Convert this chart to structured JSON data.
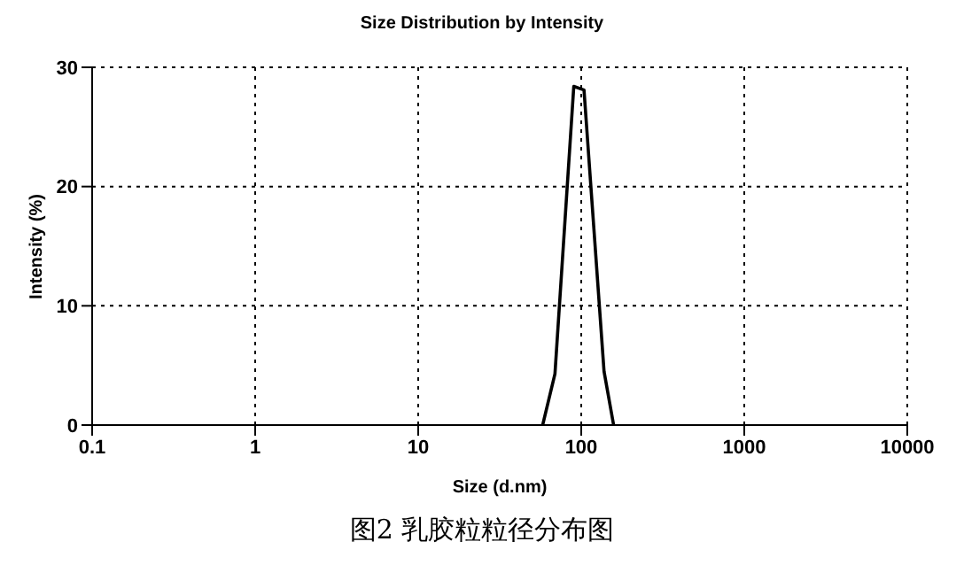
{
  "chart_data": {
    "type": "line",
    "title": "Size Distribution by Intensity",
    "xlabel": "Size (d.nm)",
    "ylabel": "Intensity (%)",
    "annotations": [
      "图2  乳胶粒粒径分布图"
    ],
    "x": [
      58,
      69,
      90,
      104,
      138,
      158
    ],
    "series": [
      {
        "color": "#000000",
        "values": [
          0,
          4.3,
          28.4,
          28.1,
          4.5,
          0
        ]
      }
    ],
    "log": "x",
    "xlim": [
      0.1,
      10000
    ],
    "xticks": [
      0.1,
      1,
      10,
      100,
      1000,
      10000
    ],
    "ylim": [
      0,
      30
    ],
    "yticks": [
      0,
      10,
      20,
      30
    ],
    "grid": true,
    "line_style": "solid",
    "marker": "none",
    "legend": false
  }
}
